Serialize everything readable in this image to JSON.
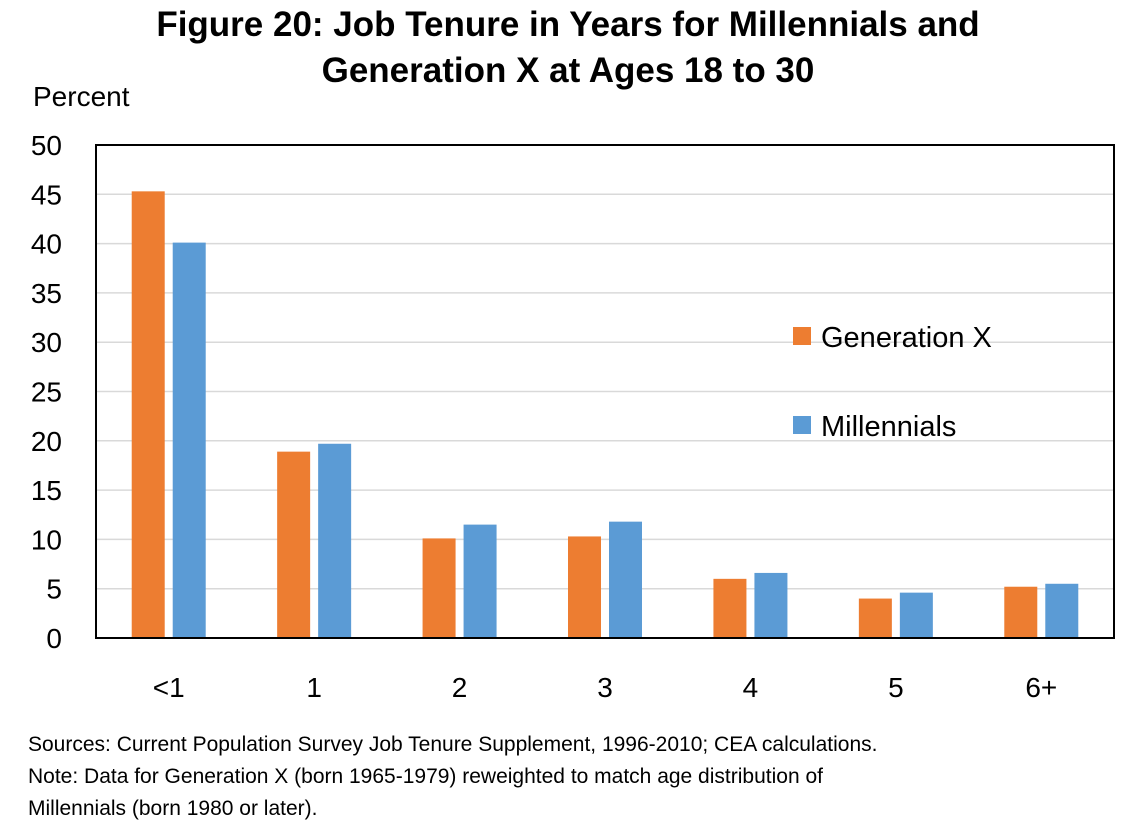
{
  "chart_data": {
    "type": "bar",
    "title": [
      "Figure 20: Job Tenure in Years for Millennials and",
      "Generation X at Ages 18 to 30"
    ],
    "ylabel": "Percent",
    "xlabel": "",
    "categories": [
      "<1",
      "1",
      "2",
      "3",
      "4",
      "5",
      "6+"
    ],
    "series": [
      {
        "name": "Generation X",
        "color": "#ED7D31",
        "values": [
          45.3,
          18.9,
          10.1,
          10.3,
          6.0,
          4.0,
          5.2
        ]
      },
      {
        "name": "Millennials",
        "color": "#5B9BD5",
        "values": [
          40.1,
          19.7,
          11.5,
          11.8,
          6.6,
          4.6,
          5.5
        ]
      }
    ],
    "ylim": [
      0,
      50
    ],
    "yticks": [
      0,
      5,
      10,
      15,
      20,
      25,
      30,
      35,
      40,
      45,
      50
    ],
    "grid": true,
    "legend_position": "right"
  },
  "notes": [
    "Sources: Current Population Survey Job Tenure Supplement, 1996-2010; CEA calculations.",
    "Note: Data for Generation X (born 1965-1979) reweighted to match age distribution of",
    "Millennials (born 1980 or later)."
  ]
}
